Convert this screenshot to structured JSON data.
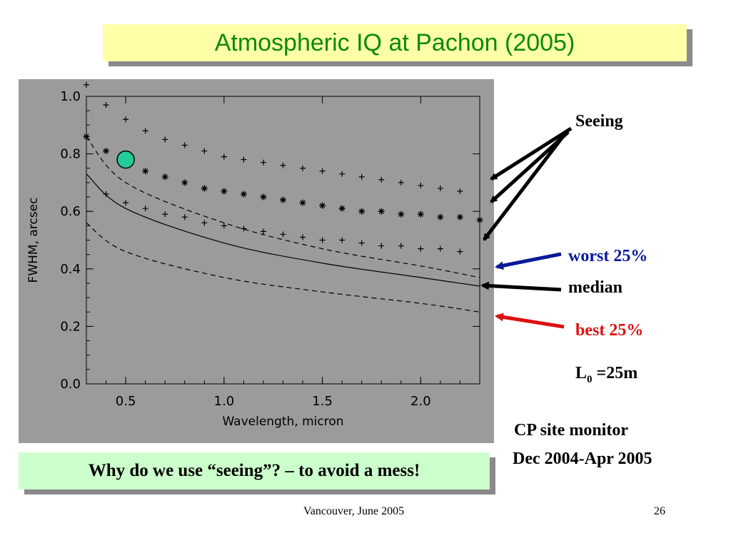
{
  "slide": {
    "title": "Atmospheric IQ at Pachon (2005)",
    "question": "Why do we use “seeing”? – to avoid a mess!",
    "footer_center": "Vancouver, June 2005",
    "page_number": "26"
  },
  "annotations": {
    "seeing": "Seeing",
    "worst": "worst 25%",
    "median": "median",
    "best": "best 25%",
    "l0_main": "L",
    "l0_sub": "0",
    "l0_value": " =25m",
    "site_line1": "CP site monitor",
    "site_line2": "Dec 2004-Apr 2005"
  },
  "colors": {
    "title_text": "#0b8a0b",
    "title_bg": "#ffffa8",
    "question_bg": "#ccffcc",
    "worst": "#0a1a99",
    "median": "#000000",
    "best": "#dd1111",
    "plot_bg": "#9b9b9b",
    "marker_fill": "#22cc99"
  },
  "chart_data": {
    "type": "line",
    "xlabel": "Wavelength, micron",
    "ylabel": "FWHM, arcsec",
    "xlim": [
      0.3,
      2.3
    ],
    "ylim": [
      0.0,
      1.0
    ],
    "xticks": [
      "0.5",
      "1.0",
      "1.5",
      "2.0"
    ],
    "yticks": [
      "0.0",
      "0.2",
      "0.4",
      "0.6",
      "0.8",
      "1.0"
    ],
    "grid": false,
    "x": [
      0.3,
      0.5,
      1.0,
      1.5,
      2.0,
      2.3
    ],
    "series": [
      {
        "style": "dashed",
        "values": [
          0.86,
          0.7,
          0.56,
          0.47,
          0.41,
          0.37
        ]
      },
      {
        "style": "solid",
        "values": [
          0.73,
          0.61,
          0.49,
          0.42,
          0.37,
          0.34
        ]
      },
      {
        "style": "dashed",
        "values": [
          0.56,
          0.46,
          0.37,
          0.32,
          0.28,
          0.25
        ]
      },
      {
        "style": "plus",
        "x": [
          0.3,
          0.4,
          0.5,
          0.6,
          0.7,
          0.8,
          0.9,
          1.0,
          1.1,
          1.2,
          1.3,
          1.4,
          1.5,
          1.6,
          1.7,
          1.8,
          1.9,
          2.0,
          2.1,
          2.2
        ],
        "values": [
          1.04,
          0.97,
          0.92,
          0.88,
          0.85,
          0.83,
          0.81,
          0.79,
          0.78,
          0.77,
          0.76,
          0.75,
          0.74,
          0.73,
          0.72,
          0.71,
          0.7,
          0.69,
          0.68,
          0.67
        ]
      },
      {
        "style": "asterisk",
        "x": [
          0.3,
          0.4,
          0.5,
          0.6,
          0.7,
          0.8,
          0.9,
          1.0,
          1.1,
          1.2,
          1.3,
          1.4,
          1.5,
          1.6,
          1.7,
          1.8,
          1.9,
          2.0,
          2.1,
          2.2,
          2.3
        ],
        "values": [
          0.86,
          0.81,
          0.77,
          0.74,
          0.72,
          0.7,
          0.68,
          0.67,
          0.66,
          0.65,
          0.64,
          0.63,
          0.62,
          0.61,
          0.6,
          0.6,
          0.59,
          0.59,
          0.58,
          0.58,
          0.57
        ]
      },
      {
        "style": "plus",
        "x": [
          0.4,
          0.5,
          0.6,
          0.7,
          0.8,
          0.9,
          1.0,
          1.1,
          1.2,
          1.3,
          1.4,
          1.5,
          1.6,
          1.7,
          1.8,
          1.9,
          2.0,
          2.1,
          2.2
        ],
        "values": [
          0.66,
          0.63,
          0.61,
          0.59,
          0.58,
          0.56,
          0.55,
          0.54,
          0.53,
          0.52,
          0.51,
          0.5,
          0.5,
          0.49,
          0.48,
          0.48,
          0.47,
          0.47,
          0.46
        ]
      }
    ],
    "highlight_point": {
      "x": 0.5,
      "y": 0.78
    }
  }
}
